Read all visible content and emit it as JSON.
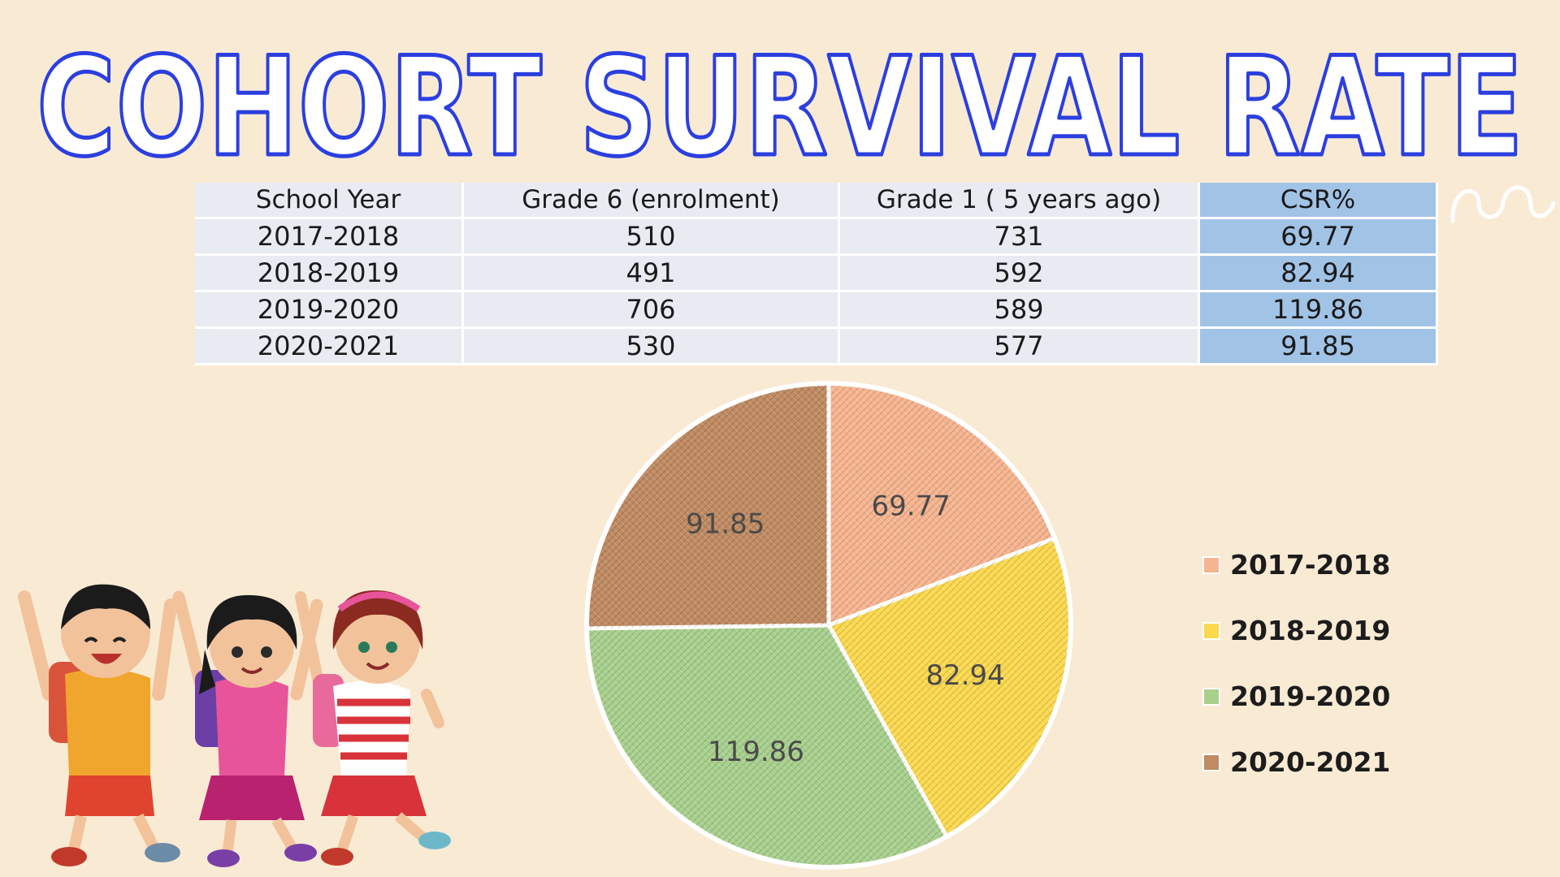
{
  "title": "COHORT SURVIVAL RATE",
  "table": {
    "headers": [
      "School Year",
      "Grade 6 (enrolment)",
      "Grade 1 ( 5 years ago)",
      "CSR%"
    ],
    "rows": [
      [
        "2017-2018",
        "510",
        "731",
        "69.77"
      ],
      [
        "2018-2019",
        "491",
        "592",
        "82.94"
      ],
      [
        "2019-2020",
        "706",
        "589",
        "119.86"
      ],
      [
        "2020-2021",
        "530",
        "577",
        "91.85"
      ]
    ]
  },
  "chart_data": {
    "type": "pie",
    "title": "",
    "categories": [
      "2017-2018",
      "2018-2019",
      "2019-2020",
      "2020-2021"
    ],
    "values": [
      69.77,
      82.94,
      119.86,
      91.85
    ],
    "data_labels": [
      "69.77",
      "82.94",
      "119.86",
      "91.85"
    ],
    "colors": [
      "#f6b48f",
      "#fbd84e",
      "#a8d08d",
      "#c08a62"
    ],
    "start_angle_deg": 0,
    "direction": "clockwise",
    "legend_position": "right"
  },
  "colors": {
    "background": "#f9ead4",
    "title_stroke": "#2b3fe0",
    "table_cell": "#e9ebf3",
    "csr_cell": "#a1c3e6"
  },
  "illustration": "three-children-waving-icon"
}
